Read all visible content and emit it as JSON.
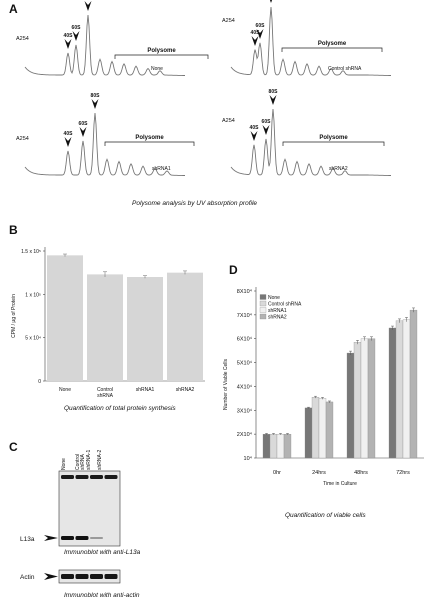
{
  "panel_a": {
    "letter": "A",
    "caption": "Polysome analysis by UV absorption profile",
    "profiles": [
      {
        "condition": "None",
        "y_label": "A254",
        "peaks": [
          "40S",
          "60S",
          "80S"
        ],
        "region": "Polysome"
      },
      {
        "condition": "Control shRNA",
        "y_label": "A254",
        "peaks": [
          "40S",
          "60S",
          "80S"
        ],
        "region": "Polysome"
      },
      {
        "condition": "shRNA1",
        "y_label": "A254",
        "peaks": [
          "40S",
          "60S",
          "80S"
        ],
        "region": "Polysome"
      },
      {
        "condition": "shRNA2",
        "y_label": "A254",
        "peaks": [
          "40S",
          "60S",
          "80S"
        ],
        "region": "Polysome"
      }
    ]
  },
  "panel_b": {
    "letter": "B",
    "caption": "Quantification of total protein synthesis",
    "chart_data": {
      "type": "bar",
      "categories": [
        "None",
        "Control\nshRNA",
        "shRNA1",
        "shRNA2"
      ],
      "values": [
        145000,
        123000,
        120000,
        125000
      ],
      "errors": [
        1500,
        3000,
        1500,
        2000
      ],
      "ylabel": "CPM / μg of Protein",
      "ylim": [
        0,
        150000
      ],
      "yticks": [
        0,
        50000,
        100000,
        150000
      ],
      "ytick_labels": [
        "0",
        "5 x 10⁴",
        "1 x 10⁵",
        "1.5 x 10⁵"
      ],
      "color": "#d6d6d6"
    }
  },
  "panel_c": {
    "letter": "C",
    "lanes": [
      "None",
      "Control\nshRNA",
      "shRNA-1",
      "shRNA-2"
    ],
    "l13a_label": "L13a",
    "actin_label": "Actin",
    "caption_l13a": "Immunoblot with anti-L13a",
    "caption_actin": "Immunoblot with anti-actin"
  },
  "panel_d": {
    "letter": "D",
    "caption": "Quantification of viable cells",
    "chart_data": {
      "type": "bar",
      "categories": [
        "0hr",
        "24hrs",
        "48hrs",
        "72hrs"
      ],
      "series": [
        {
          "name": "None",
          "values": [
            20000,
            31000,
            54000,
            64500
          ],
          "errors": [
            300,
            300,
            800,
            800
          ],
          "color": "#777777"
        },
        {
          "name": "Control shRNA",
          "values": [
            20000,
            35500,
            58500,
            67500
          ],
          "errors": [
            300,
            400,
            800,
            800
          ],
          "color": "#d9d9d9"
        },
        {
          "name": "shRNA1",
          "values": [
            20000,
            35000,
            60000,
            68000
          ],
          "errors": [
            300,
            400,
            800,
            900
          ],
          "color": "#f0f0f0"
        },
        {
          "name": "shRNA2",
          "values": [
            20000,
            33500,
            60000,
            72000
          ],
          "errors": [
            300,
            400,
            800,
            900
          ],
          "color": "#b3b3b3"
        }
      ],
      "xlabel": "Time in Culture",
      "ylabel": "Number of Viable Cells",
      "ylim": [
        10000,
        80000
      ],
      "yticks": [
        10000,
        20000,
        30000,
        40000,
        50000,
        60000,
        70000,
        80000
      ],
      "ytick_labels": [
        "10⁴",
        "2X10⁴",
        "3X10⁴",
        "4X10⁴",
        "5X10⁴",
        "6X10⁴",
        "7X10⁴",
        "8X10⁴"
      ],
      "legend_position": "top-left"
    }
  }
}
